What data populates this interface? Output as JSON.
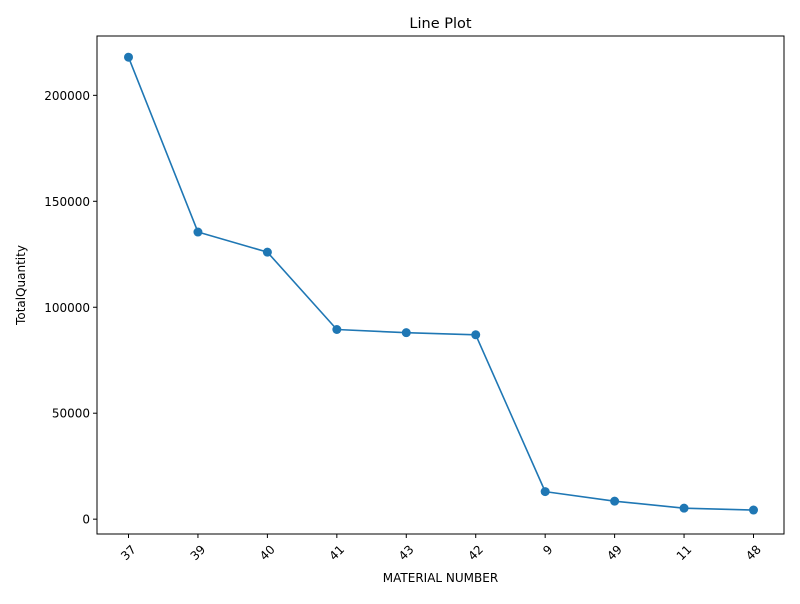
{
  "chart_data": {
    "type": "line",
    "title": "Line Plot",
    "xlabel": "MATERIAL NUMBER",
    "ylabel": "TotalQuantity",
    "categories": [
      "37",
      "39",
      "40",
      "41",
      "43",
      "42",
      "9",
      "49",
      "11",
      "48"
    ],
    "series": [
      {
        "values": [
          218000,
          135500,
          126000,
          89500,
          88000,
          87000,
          13000,
          8500,
          5200,
          4300
        ],
        "color": "#1f77b4",
        "marker": "circle"
      }
    ],
    "ylim": [
      -7000,
      228000
    ],
    "yticks": [
      0,
      50000,
      100000,
      150000,
      200000
    ],
    "ytick_labels": [
      "0",
      "50000",
      "100000",
      "150000",
      "200000"
    ],
    "xtick_rotation": 45,
    "grid": false,
    "legend": "none"
  }
}
